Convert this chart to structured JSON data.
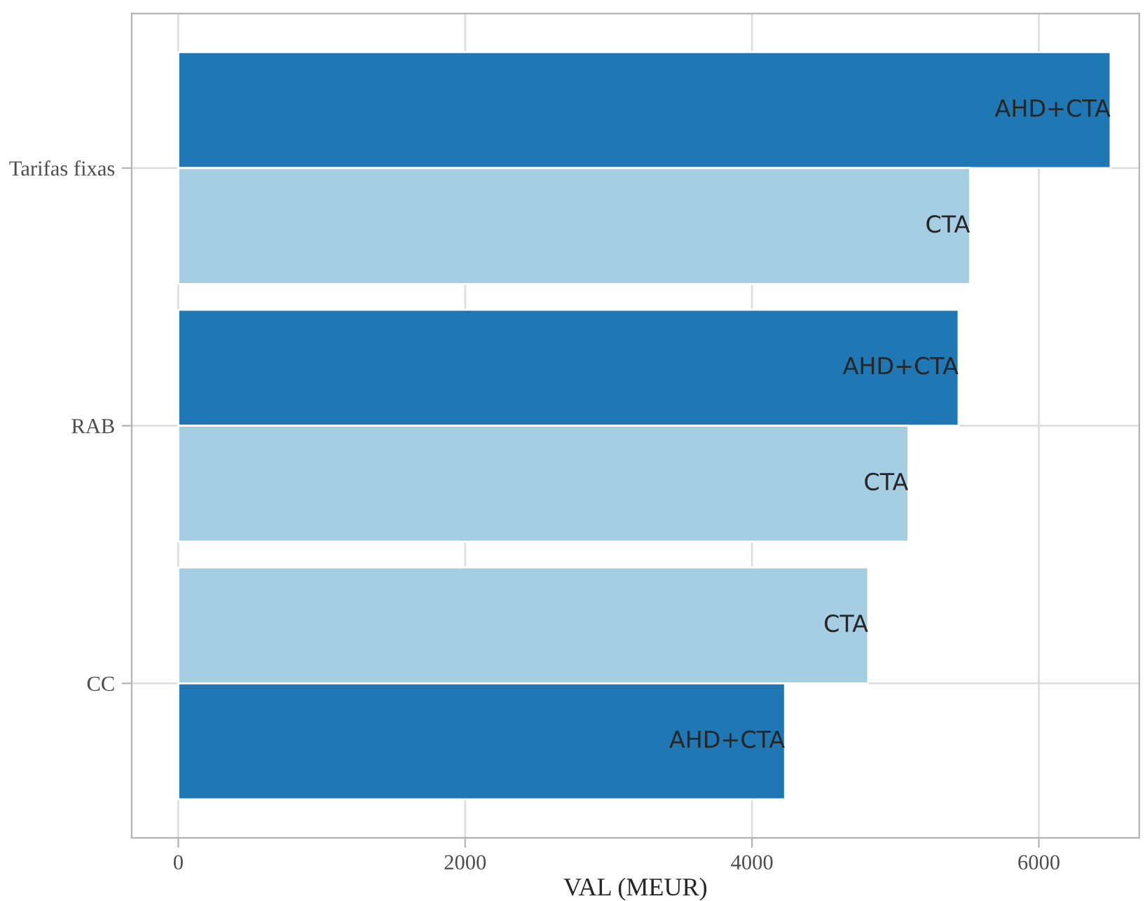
{
  "chart_data": {
    "type": "bar",
    "orientation": "horizontal",
    "xlabel": "VAL (MEUR)",
    "categories": [
      "Tarifas fixas",
      "RAB",
      "CC"
    ],
    "series": [
      {
        "name": "AHD+CTA",
        "color": "#1f78b4",
        "values": [
          6500,
          5440,
          4230
        ]
      },
      {
        "name": "CTA",
        "color": "#a6cee3",
        "values": [
          5520,
          5090,
          4810
        ]
      }
    ],
    "xlim": [
      -325,
      6700
    ],
    "xticks": [
      0,
      2000,
      4000,
      6000
    ],
    "grid": true,
    "legend": false
  }
}
